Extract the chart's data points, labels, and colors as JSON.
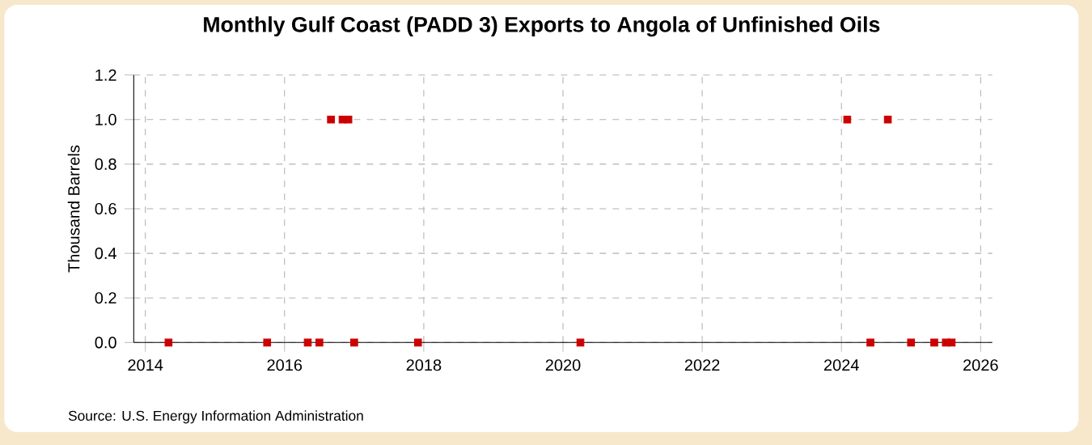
{
  "chart_data": {
    "type": "scatter",
    "title": "Monthly Gulf Coast (PADD 3) Exports to Angola of Unfinished Oils",
    "ylabel": "Thousand Barrels",
    "x": [
      "2014-05",
      "2015-10",
      "2016-05",
      "2016-07",
      "2016-09",
      "2016-11",
      "2016-12",
      "2017-01",
      "2017-12",
      "2020-04",
      "2024-02",
      "2024-06",
      "2024-09",
      "2025-01",
      "2025-05",
      "2025-07",
      "2025-08"
    ],
    "values": [
      0,
      0,
      0,
      0,
      1,
      1,
      1,
      0,
      0,
      0,
      1,
      0,
      1,
      0,
      0,
      0,
      0
    ],
    "color": "#cc0000",
    "marker": "square",
    "xlim": [
      "2013-11",
      "2026-03"
    ],
    "xticks": [
      "2014",
      "2016",
      "2018",
      "2020",
      "2022",
      "2024",
      "2026"
    ],
    "ylim": [
      0,
      1.2
    ],
    "yticks": [
      {
        "value": 0,
        "label": "0.0"
      },
      0.2,
      0.4,
      0.6,
      0.8,
      {
        "value": 1,
        "label": "1.0"
      },
      1.2
    ],
    "grid": true,
    "annotations": [
      "Source: U.S. Energy Information Administration"
    ]
  }
}
